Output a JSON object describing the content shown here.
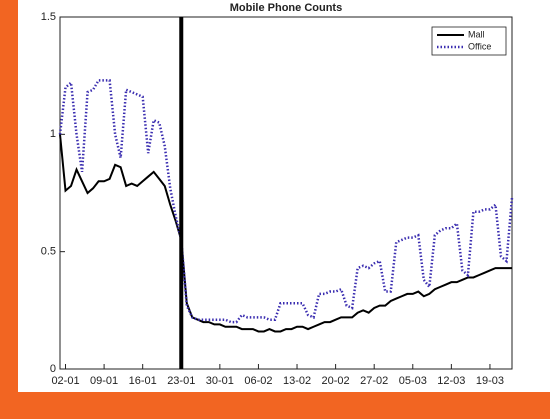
{
  "chart_data": {
    "type": "line",
    "title": "Mobile Phone Counts",
    "categories": [
      null,
      "02-01",
      null,
      null,
      null,
      null,
      null,
      null,
      "09-01",
      null,
      null,
      null,
      null,
      null,
      null,
      "16-01",
      null,
      null,
      null,
      null,
      null,
      null,
      "23-01",
      null,
      null,
      null,
      null,
      null,
      null,
      "30-01",
      null,
      null,
      null,
      null,
      null,
      null,
      "06-02",
      null,
      null,
      null,
      null,
      null,
      null,
      "13-02",
      null,
      null,
      null,
      null,
      null,
      null,
      "20-02",
      null,
      null,
      null,
      null,
      null,
      null,
      "27-02",
      null,
      null,
      null,
      null,
      null,
      null,
      "05-03",
      null,
      null,
      null,
      null,
      null,
      null,
      "12-03",
      null,
      null,
      null,
      null,
      null,
      null,
      "19-03",
      null,
      null,
      null,
      null
    ],
    "series": [
      {
        "name": "Mall",
        "color": "#000000",
        "dash": "solid",
        "values": [
          1.0,
          0.76,
          0.78,
          0.85,
          0.8,
          0.75,
          0.77,
          0.8,
          0.8,
          0.81,
          0.87,
          0.86,
          0.78,
          0.79,
          0.78,
          0.8,
          0.82,
          0.84,
          0.81,
          0.78,
          0.7,
          0.63,
          0.55,
          0.28,
          0.22,
          0.21,
          0.2,
          0.2,
          0.19,
          0.19,
          0.18,
          0.18,
          0.18,
          0.17,
          0.17,
          0.17,
          0.16,
          0.16,
          0.17,
          0.16,
          0.16,
          0.17,
          0.17,
          0.18,
          0.18,
          0.17,
          0.18,
          0.19,
          0.2,
          0.2,
          0.21,
          0.22,
          0.22,
          0.22,
          0.24,
          0.25,
          0.24,
          0.26,
          0.27,
          0.27,
          0.29,
          0.3,
          0.31,
          0.32,
          0.32,
          0.33,
          0.31,
          0.32,
          0.34,
          0.35,
          0.36,
          0.37,
          0.37,
          0.38,
          0.39,
          0.39,
          0.4,
          0.41,
          0.42,
          0.43,
          0.43,
          0.43,
          0.43
        ]
      },
      {
        "name": "Office",
        "color": "#3a2db0",
        "dash": "dotted",
        "values": [
          1.0,
          1.2,
          1.22,
          1.0,
          0.84,
          1.18,
          1.19,
          1.23,
          1.23,
          1.23,
          1.0,
          0.9,
          1.19,
          1.18,
          1.17,
          1.16,
          0.92,
          1.06,
          1.05,
          0.95,
          0.77,
          0.65,
          0.55,
          0.27,
          0.22,
          0.21,
          0.21,
          0.21,
          0.21,
          0.21,
          0.21,
          0.2,
          0.2,
          0.23,
          0.22,
          0.22,
          0.22,
          0.22,
          0.21,
          0.21,
          0.28,
          0.28,
          0.28,
          0.28,
          0.28,
          0.23,
          0.22,
          0.32,
          0.32,
          0.33,
          0.33,
          0.34,
          0.27,
          0.26,
          0.43,
          0.44,
          0.43,
          0.45,
          0.46,
          0.33,
          0.33,
          0.54,
          0.55,
          0.56,
          0.56,
          0.57,
          0.38,
          0.35,
          0.57,
          0.59,
          0.6,
          0.6,
          0.62,
          0.42,
          0.4,
          0.67,
          0.67,
          0.68,
          0.68,
          0.7,
          0.48,
          0.46,
          0.73
        ]
      }
    ],
    "marker_line": {
      "at": "23-01",
      "color": "#000000"
    },
    "ylim": [
      0,
      1.5
    ],
    "yticks": [
      0,
      0.5,
      1,
      1.5
    ],
    "legend": "upper right",
    "grid": false
  }
}
